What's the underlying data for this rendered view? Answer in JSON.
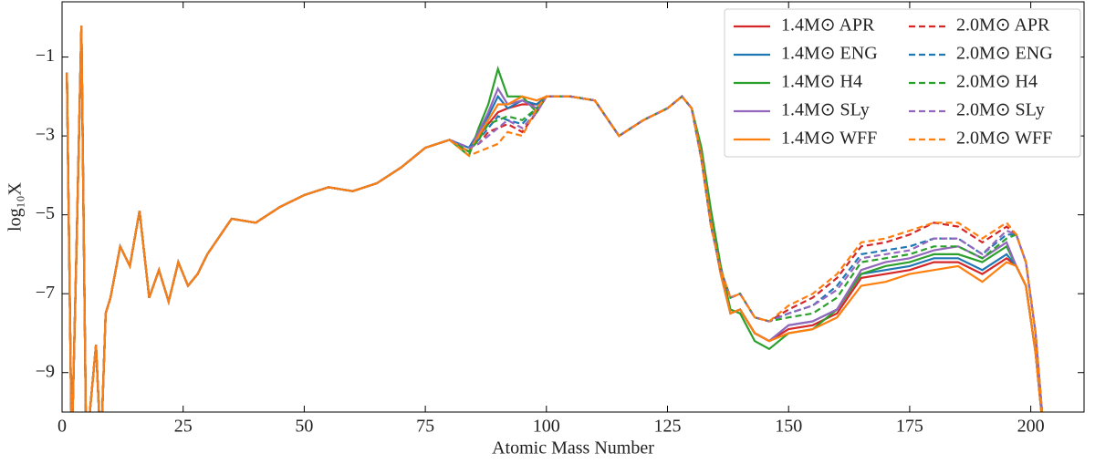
{
  "chart_data": {
    "type": "line",
    "xlabel": "Atomic Mass Number",
    "ylabel": "log₁₀X",
    "x": [
      1,
      2,
      3,
      4,
      5,
      7,
      8,
      9,
      10,
      12,
      14,
      16,
      18,
      20,
      22,
      24,
      26,
      28,
      30,
      35,
      40,
      45,
      50,
      55,
      60,
      65,
      70,
      75,
      80,
      84,
      86,
      88,
      90,
      92,
      95,
      98,
      100,
      105,
      110,
      115,
      120,
      125,
      128,
      130,
      132,
      134,
      136,
      138,
      140,
      143,
      146,
      150,
      155,
      160,
      165,
      170,
      175,
      180,
      185,
      190,
      195,
      197,
      199,
      201,
      203
    ],
    "xlim": [
      0,
      211
    ],
    "ylim": [
      -10,
      0.4
    ],
    "xticks": [
      0,
      25,
      50,
      75,
      100,
      125,
      150,
      175,
      200
    ],
    "yticks": [
      {
        "value": -1,
        "label": "−1"
      },
      {
        "value": -3,
        "label": "−3"
      },
      {
        "value": -5,
        "label": "−5"
      },
      {
        "value": -7,
        "label": "−7"
      },
      {
        "value": -9,
        "label": "−9"
      }
    ],
    "legend": "upper right",
    "series": [
      {
        "name": "1.4M⊙ APR",
        "color": "#d62728",
        "linestyle": "solid",
        "values": [
          -1.4,
          -11,
          -5.8,
          -0.2,
          -11,
          -8.3,
          -11,
          -7.5,
          -7.1,
          -5.8,
          -6.3,
          -4.9,
          -7.1,
          -6.4,
          -7.2,
          -6.2,
          -6.8,
          -6.5,
          -6.0,
          -5.1,
          -5.2,
          -4.8,
          -4.5,
          -4.3,
          -4.4,
          -4.2,
          -3.8,
          -3.3,
          -3.1,
          -3.4,
          -3.0,
          -2.7,
          -2.4,
          -2.3,
          -2.2,
          -2.2,
          -2.0,
          -2.0,
          -2.1,
          -3.0,
          -2.6,
          -2.3,
          -2.0,
          -2.3,
          -3.5,
          -5.2,
          -6.5,
          -7.5,
          -7.4,
          -8.0,
          -8.2,
          -7.9,
          -7.8,
          -7.5,
          -6.6,
          -6.5,
          -6.4,
          -6.2,
          -6.2,
          -6.5,
          -6.1,
          -6.3,
          -6.8,
          -8.5,
          -11
        ]
      },
      {
        "name": "1.4M⊙ ENG",
        "color": "#1f77b4",
        "linestyle": "solid",
        "values": [
          -1.4,
          -11,
          -5.8,
          -0.2,
          -11,
          -8.3,
          -11,
          -7.5,
          -7.1,
          -5.8,
          -6.3,
          -4.9,
          -7.1,
          -6.4,
          -7.2,
          -6.2,
          -6.8,
          -6.5,
          -6.0,
          -5.1,
          -5.2,
          -4.8,
          -4.5,
          -4.3,
          -4.4,
          -4.2,
          -3.8,
          -3.3,
          -3.1,
          -3.3,
          -2.9,
          -2.5,
          -2.0,
          -2.3,
          -2.1,
          -2.2,
          -2.0,
          -2.0,
          -2.1,
          -3.0,
          -2.6,
          -2.3,
          -2.0,
          -2.3,
          -3.5,
          -5.2,
          -6.5,
          -7.5,
          -7.4,
          -8.0,
          -8.2,
          -7.8,
          -7.7,
          -7.4,
          -6.5,
          -6.4,
          -6.3,
          -6.1,
          -6.1,
          -6.4,
          -6.0,
          -6.3,
          -6.8,
          -8.5,
          -11
        ]
      },
      {
        "name": "1.4M⊙ H4",
        "color": "#2ca02c",
        "linestyle": "solid",
        "values": [
          -1.4,
          -11,
          -5.8,
          -0.2,
          -11,
          -8.3,
          -11,
          -7.5,
          -7.1,
          -5.8,
          -6.3,
          -4.9,
          -7.1,
          -6.4,
          -7.2,
          -6.2,
          -6.8,
          -6.5,
          -6.0,
          -5.1,
          -5.2,
          -4.8,
          -4.5,
          -4.3,
          -4.4,
          -4.2,
          -3.8,
          -3.3,
          -3.1,
          -3.5,
          -2.8,
          -2.2,
          -1.3,
          -2.0,
          -2.0,
          -2.4,
          -2.0,
          -2.0,
          -2.1,
          -3.0,
          -2.6,
          -2.3,
          -2.0,
          -2.3,
          -3.3,
          -4.9,
          -6.3,
          -7.4,
          -7.5,
          -8.2,
          -8.4,
          -8.0,
          -7.9,
          -7.4,
          -6.5,
          -6.3,
          -6.2,
          -6.0,
          -6.0,
          -6.2,
          -5.8,
          -6.3,
          -6.8,
          -8.5,
          -11
        ]
      },
      {
        "name": "1.4M⊙ SLy",
        "color": "#9467bd",
        "linestyle": "solid",
        "values": [
          -1.4,
          -11,
          -5.8,
          -0.2,
          -11,
          -8.3,
          -11,
          -7.5,
          -7.1,
          -5.8,
          -6.3,
          -4.9,
          -7.1,
          -6.4,
          -7.2,
          -6.2,
          -6.8,
          -6.5,
          -6.0,
          -5.1,
          -5.2,
          -4.8,
          -4.5,
          -4.3,
          -4.4,
          -4.2,
          -3.8,
          -3.3,
          -3.1,
          -3.4,
          -2.9,
          -2.4,
          -1.8,
          -2.2,
          -2.1,
          -2.3,
          -2.0,
          -2.0,
          -2.1,
          -3.0,
          -2.6,
          -2.3,
          -2.0,
          -2.3,
          -3.5,
          -5.2,
          -6.5,
          -7.5,
          -7.4,
          -8.0,
          -8.2,
          -7.8,
          -7.7,
          -7.4,
          -6.4,
          -6.2,
          -6.1,
          -5.9,
          -5.8,
          -6.1,
          -5.7,
          -6.3,
          -6.8,
          -8.5,
          -11
        ]
      },
      {
        "name": "1.4M⊙ WFF",
        "color": "#ff7f0e",
        "linestyle": "solid",
        "values": [
          -1.4,
          -11,
          -5.8,
          -0.2,
          -11,
          -8.3,
          -11,
          -7.5,
          -7.1,
          -5.8,
          -6.3,
          -4.9,
          -7.1,
          -6.4,
          -7.2,
          -6.2,
          -6.8,
          -6.5,
          -6.0,
          -5.1,
          -5.2,
          -4.8,
          -4.5,
          -4.3,
          -4.4,
          -4.2,
          -3.8,
          -3.3,
          -3.1,
          -3.4,
          -3.0,
          -2.6,
          -2.2,
          -2.2,
          -2.0,
          -2.1,
          -2.0,
          -2.0,
          -2.1,
          -3.0,
          -2.6,
          -2.3,
          -2.0,
          -2.3,
          -3.5,
          -5.2,
          -6.5,
          -7.5,
          -7.4,
          -8.0,
          -8.2,
          -8.0,
          -7.9,
          -7.6,
          -6.8,
          -6.7,
          -6.5,
          -6.4,
          -6.3,
          -6.7,
          -6.2,
          -6.3,
          -6.8,
          -8.5,
          -11
        ]
      },
      {
        "name": "2.0M⊙ APR",
        "color": "#d62728",
        "linestyle": "dashed",
        "values": [
          -1.4,
          -11,
          -5.8,
          -0.2,
          -11,
          -8.3,
          -11,
          -7.5,
          -7.1,
          -5.8,
          -6.3,
          -4.9,
          -7.1,
          -6.4,
          -7.2,
          -6.2,
          -6.8,
          -6.5,
          -6.0,
          -5.1,
          -5.2,
          -4.8,
          -4.5,
          -4.3,
          -4.4,
          -4.2,
          -3.8,
          -3.3,
          -3.1,
          -3.3,
          -3.2,
          -2.9,
          -2.8,
          -2.7,
          -2.9,
          -2.4,
          -2.0,
          -2.0,
          -2.1,
          -3.0,
          -2.6,
          -2.3,
          -2.0,
          -2.3,
          -3.6,
          -5.3,
          -6.4,
          -7.1,
          -7.0,
          -7.6,
          -7.7,
          -7.4,
          -7.1,
          -6.6,
          -5.8,
          -5.7,
          -5.5,
          -5.2,
          -5.3,
          -5.7,
          -5.3,
          -5.5,
          -6.2,
          -8.0,
          -11
        ]
      },
      {
        "name": "2.0M⊙ ENG",
        "color": "#1f77b4",
        "linestyle": "dashed",
        "values": [
          -1.4,
          -11,
          -5.8,
          -0.2,
          -11,
          -8.3,
          -11,
          -7.5,
          -7.1,
          -5.8,
          -6.3,
          -4.9,
          -7.1,
          -6.4,
          -7.2,
          -6.2,
          -6.8,
          -6.5,
          -6.0,
          -5.1,
          -5.2,
          -4.8,
          -4.5,
          -4.3,
          -4.4,
          -4.2,
          -3.8,
          -3.3,
          -3.1,
          -3.3,
          -3.1,
          -2.8,
          -2.5,
          -2.6,
          -2.7,
          -2.3,
          -2.0,
          -2.0,
          -2.1,
          -3.0,
          -2.6,
          -2.3,
          -2.0,
          -2.3,
          -3.6,
          -5.3,
          -6.4,
          -7.1,
          -7.0,
          -7.6,
          -7.7,
          -7.5,
          -7.3,
          -6.8,
          -6.0,
          -5.9,
          -5.8,
          -5.6,
          -5.6,
          -6.0,
          -5.5,
          -5.5,
          -6.2,
          -8.0,
          -11
        ]
      },
      {
        "name": "2.0M⊙ H4",
        "color": "#2ca02c",
        "linestyle": "dashed",
        "values": [
          -1.4,
          -11,
          -5.8,
          -0.2,
          -11,
          -8.3,
          -11,
          -7.5,
          -7.1,
          -5.8,
          -6.3,
          -4.9,
          -7.1,
          -6.4,
          -7.2,
          -6.2,
          -6.8,
          -6.5,
          -6.0,
          -5.1,
          -5.2,
          -4.8,
          -4.5,
          -4.3,
          -4.4,
          -4.2,
          -3.8,
          -3.3,
          -3.1,
          -3.4,
          -3.1,
          -2.7,
          -2.6,
          -2.5,
          -2.6,
          -2.3,
          -2.0,
          -2.0,
          -2.1,
          -3.0,
          -2.6,
          -2.3,
          -2.0,
          -2.3,
          -3.6,
          -5.3,
          -6.4,
          -7.1,
          -7.0,
          -7.6,
          -7.7,
          -7.6,
          -7.5,
          -7.1,
          -6.2,
          -6.1,
          -6.0,
          -5.8,
          -5.8,
          -6.1,
          -5.6,
          -5.5,
          -6.2,
          -8.0,
          -11
        ]
      },
      {
        "name": "2.0M⊙ SLy",
        "color": "#9467bd",
        "linestyle": "dashed",
        "values": [
          -1.4,
          -11,
          -5.8,
          -0.2,
          -11,
          -8.3,
          -11,
          -7.5,
          -7.1,
          -5.8,
          -6.3,
          -4.9,
          -7.1,
          -6.4,
          -7.2,
          -6.2,
          -6.8,
          -6.5,
          -6.0,
          -5.1,
          -5.2,
          -4.8,
          -4.5,
          -4.3,
          -4.4,
          -4.2,
          -3.8,
          -3.3,
          -3.1,
          -3.3,
          -3.2,
          -3.0,
          -2.8,
          -2.6,
          -2.8,
          -2.4,
          -2.0,
          -2.0,
          -2.1,
          -3.0,
          -2.6,
          -2.3,
          -2.0,
          -2.3,
          -3.6,
          -5.3,
          -6.4,
          -7.1,
          -7.0,
          -7.6,
          -7.7,
          -7.5,
          -7.3,
          -6.9,
          -6.1,
          -6.0,
          -5.9,
          -5.6,
          -5.6,
          -6.0,
          -5.4,
          -5.5,
          -6.2,
          -8.0,
          -11
        ]
      },
      {
        "name": "2.0M⊙ WFF",
        "color": "#ff7f0e",
        "linestyle": "dashed",
        "values": [
          -1.4,
          -11,
          -5.8,
          -0.2,
          -11,
          -8.3,
          -11,
          -7.5,
          -7.1,
          -5.8,
          -6.3,
          -4.9,
          -7.1,
          -6.4,
          -7.2,
          -6.2,
          -6.8,
          -6.5,
          -6.0,
          -5.1,
          -5.2,
          -4.8,
          -4.5,
          -4.3,
          -4.4,
          -4.2,
          -3.8,
          -3.3,
          -3.1,
          -3.5,
          -3.4,
          -3.3,
          -3.2,
          -2.9,
          -3.0,
          -2.3,
          -2.0,
          -2.0,
          -2.1,
          -3.0,
          -2.6,
          -2.3,
          -2.0,
          -2.3,
          -3.6,
          -5.3,
          -6.4,
          -7.1,
          -7.0,
          -7.6,
          -7.7,
          -7.3,
          -7.0,
          -6.5,
          -5.7,
          -5.6,
          -5.4,
          -5.2,
          -5.2,
          -5.6,
          -5.2,
          -5.5,
          -6.2,
          -8.0,
          -11
        ]
      }
    ]
  }
}
